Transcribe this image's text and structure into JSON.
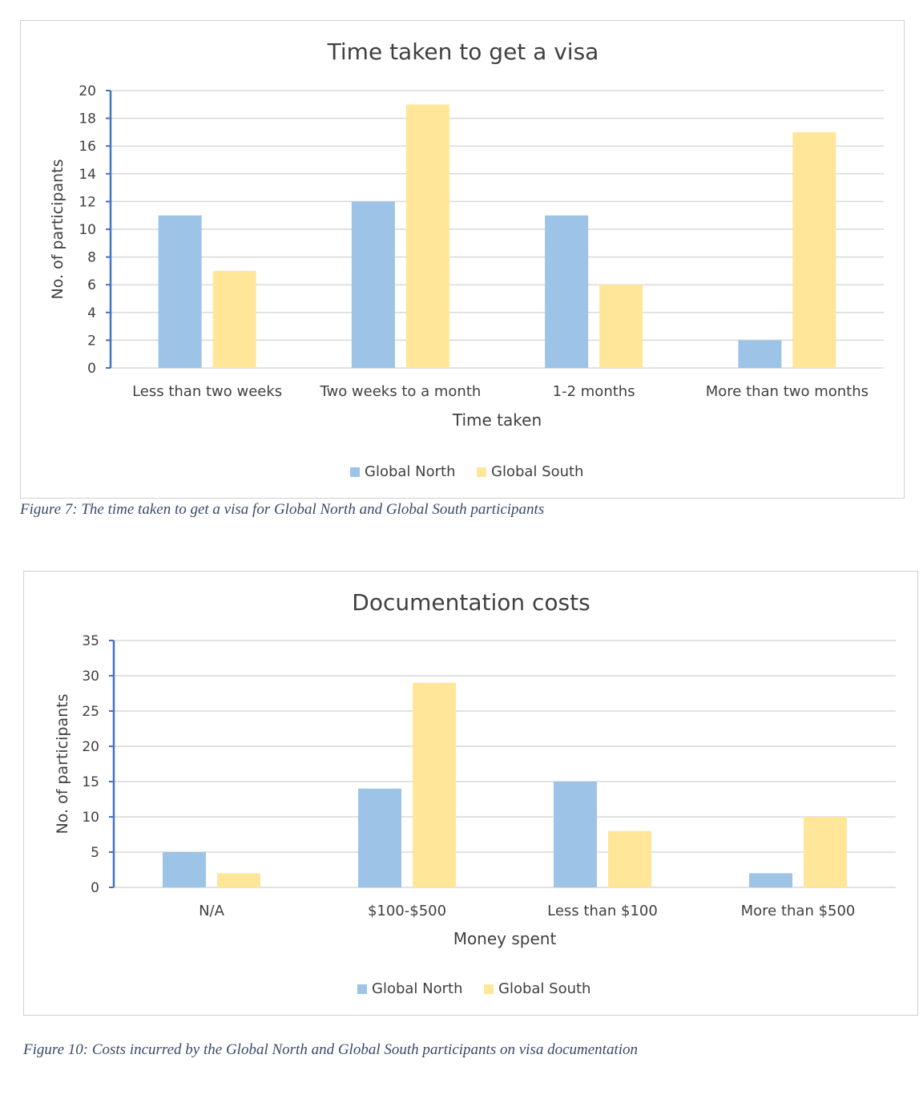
{
  "chart_data": [
    {
      "type": "bar",
      "title": "Time taken to get a visa",
      "xlabel": "Time taken",
      "ylabel": "No. of participants",
      "categories": [
        "Less than two weeks",
        "Two weeks to a month",
        "1-2 months",
        "More than two months"
      ],
      "series": [
        {
          "name": "Global North",
          "values": [
            11,
            12,
            11,
            2
          ]
        },
        {
          "name": "Global South",
          "values": [
            7,
            19,
            6,
            17
          ]
        }
      ],
      "ylim": [
        0,
        20
      ],
      "yticks": [
        0,
        2,
        4,
        6,
        8,
        10,
        12,
        14,
        16,
        18,
        20
      ],
      "legend": "bottom",
      "grid": true
    },
    {
      "type": "bar",
      "title": "Documentation costs",
      "xlabel": "Money spent",
      "ylabel": "No. of participants",
      "categories": [
        "N/A",
        "$100-$500",
        "Less than $100",
        "More than $500"
      ],
      "series": [
        {
          "name": "Global North",
          "values": [
            5,
            14,
            15,
            2
          ]
        },
        {
          "name": "Global South",
          "values": [
            2,
            29,
            8,
            10
          ]
        }
      ],
      "ylim": [
        0,
        35
      ],
      "yticks": [
        0,
        5,
        10,
        15,
        20,
        25,
        30,
        35
      ],
      "legend": "bottom",
      "grid": true
    }
  ],
  "colors": {
    "global_north": "#9dc3e6",
    "global_south": "#ffe699",
    "gridline": "#d9d9d9",
    "axis": "#4472c4",
    "text": "#404040"
  },
  "captions": {
    "figure7": "Figure 7: The time taken to get a visa for Global North and Global South participants",
    "figure10": "Figure 10: Costs incurred by the Global North and Global South participants on visa documentation"
  }
}
